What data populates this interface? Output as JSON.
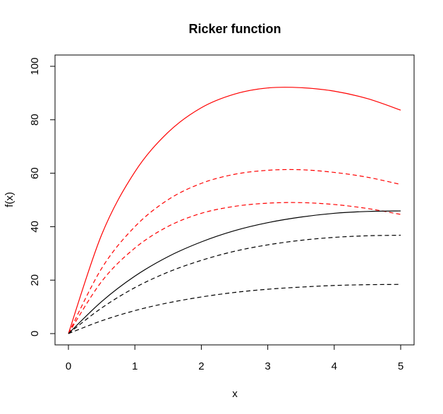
{
  "chart_data": {
    "type": "line",
    "title": "Ricker function",
    "xlabel": "x",
    "ylabel": "f(x)",
    "xlim": [
      0,
      5
    ],
    "ylim": [
      0,
      100
    ],
    "x_ticks": [
      0,
      1,
      2,
      3,
      4,
      5
    ],
    "y_ticks": [
      0,
      20,
      40,
      60,
      80,
      100
    ],
    "grid": false,
    "legend": "none",
    "series": [
      {
        "color": "#ff0000",
        "linestyle": "solid",
        "x": [
          0,
          0.5,
          1,
          1.5,
          2,
          2.5,
          3,
          3.5,
          4,
          4.5,
          5
        ],
        "values": [
          0,
          37.0,
          60.5,
          75.3,
          84.5,
          89.6,
          91.9,
          92.0,
          90.7,
          87.9,
          83.6
        ]
      },
      {
        "color": "#ff0000",
        "linestyle": "dashed",
        "x": [
          0,
          0.5,
          1,
          1.5,
          2,
          2.5,
          3,
          3.5,
          4,
          4.5,
          5
        ],
        "values": [
          0,
          24.4,
          40.0,
          50.1,
          56.2,
          59.6,
          61.1,
          61.3,
          60.3,
          58.5,
          55.8
        ]
      },
      {
        "color": "#ff0000",
        "linestyle": "dashed",
        "x": [
          0,
          0.5,
          1,
          1.5,
          2,
          2.5,
          3,
          3.5,
          4,
          4.5,
          5
        ],
        "values": [
          0,
          19.5,
          32.0,
          40.1,
          45.0,
          47.6,
          48.8,
          49.0,
          48.3,
          46.8,
          44.6
        ]
      },
      {
        "color": "#000000",
        "linestyle": "solid",
        "x": [
          0,
          0.5,
          1,
          1.5,
          2,
          2.5,
          3,
          3.5,
          4,
          4.5,
          5
        ],
        "values": [
          0,
          12.0,
          21.5,
          28.8,
          34.3,
          38.5,
          41.5,
          43.6,
          45.0,
          45.7,
          45.9
        ]
      },
      {
        "color": "#000000",
        "linestyle": "dashed",
        "x": [
          0,
          0.5,
          1,
          1.5,
          2,
          2.5,
          3,
          3.5,
          4,
          4.5,
          5
        ],
        "values": [
          0,
          9.6,
          17.2,
          23.0,
          27.4,
          30.8,
          33.2,
          34.9,
          36.0,
          36.6,
          36.8
        ]
      },
      {
        "color": "#000000",
        "linestyle": "dashed",
        "x": [
          0,
          0.5,
          1,
          1.5,
          2,
          2.5,
          3,
          3.5,
          4,
          4.5,
          5
        ],
        "values": [
          0,
          4.8,
          8.6,
          11.5,
          13.7,
          15.4,
          16.6,
          17.4,
          18.0,
          18.3,
          18.4
        ]
      }
    ]
  }
}
